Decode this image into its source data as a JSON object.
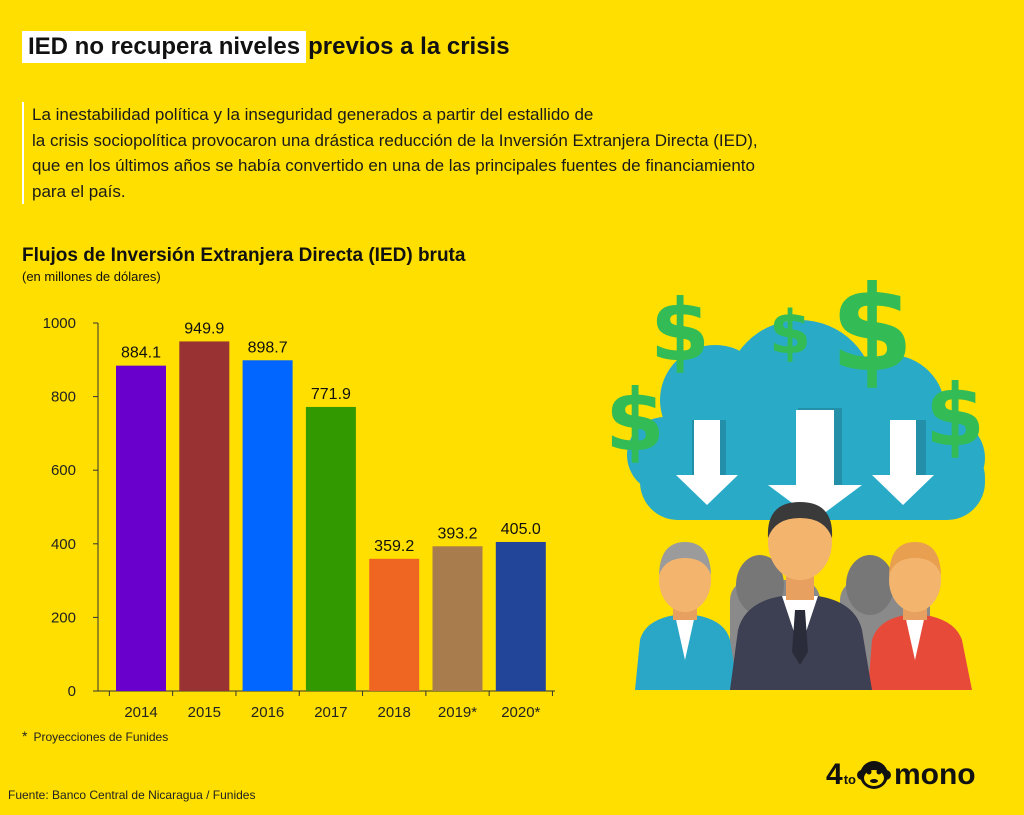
{
  "header": {
    "title_highlight": "IED no recupera niveles",
    "title_rest": "previos a la crisis"
  },
  "description": {
    "lines": [
      "La inestabilidad política y la inseguridad generados a partir del estallido de",
      "la crisis sociopolítica provocaron una drástica reducción de la Inversión Extranjera Directa (IED),",
      "que en los últimos años se había convertido en una de las principales fuentes de financiamiento",
      "para el país."
    ]
  },
  "chart_data": {
    "type": "bar",
    "title": "Flujos de Inversión Extranjera Directa (IED) bruta",
    "subtitle": "(en millones de dólares)",
    "categories": [
      "2014",
      "2015",
      "2016",
      "2017",
      "2018",
      "2019*",
      "2020*"
    ],
    "values": [
      884.1,
      949.9,
      898.7,
      771.9,
      359.2,
      393.2,
      405.0
    ],
    "value_labels": [
      "884.1",
      "949.9",
      "898.7",
      "771.9",
      "359.2",
      "393.2",
      "405.0"
    ],
    "colors": [
      "#6A00CC",
      "#993333",
      "#0066FF",
      "#339900",
      "#EE6622",
      "#A87C4C",
      "#224499"
    ],
    "ylim": [
      0,
      1000
    ],
    "yticks": [
      0,
      200,
      400,
      600,
      800,
      1000
    ],
    "grid": false,
    "legend": "none"
  },
  "footnote": {
    "star": "*",
    "text": "Proyecciones de Funides"
  },
  "source": "Fuente: Banco Central de Nicaragua / Funides",
  "logo": {
    "four": "4",
    "to": "to",
    "mono": "mono"
  },
  "illustration": {
    "icon": "investment-people-cloud-icon",
    "currency_symbol": "$"
  }
}
